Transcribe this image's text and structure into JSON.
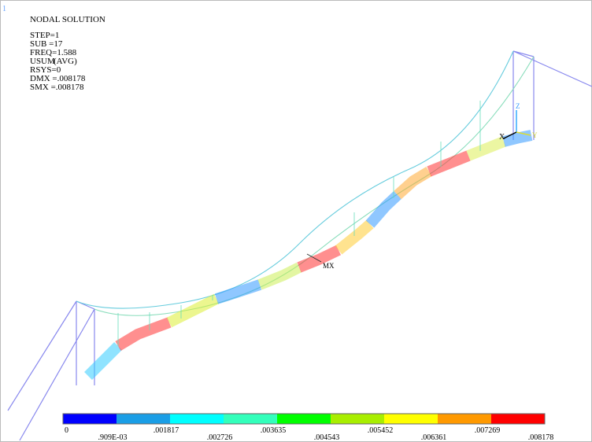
{
  "window_label": "1",
  "header": {
    "lines": [
      "NODAL SOLUTION",
      "STEP=1",
      "SUB =17",
      "FREQ=1.588",
      "USUM",
      "RSYS=0",
      "DMX =.008178",
      "SMX =.008178"
    ],
    "avg": "(AVG)"
  },
  "markers": {
    "max": "MX",
    "axes": [
      "Z",
      "X",
      "Y"
    ]
  },
  "legend": {
    "colors": [
      "#0000ff",
      "#1a9ee6",
      "#00ffff",
      "#33ffbb",
      "#00ff00",
      "#a8ee00",
      "#ffff00",
      "#ff9900",
      "#ff0000"
    ],
    "labels": [
      "0",
      ".909E-03",
      ".001817",
      ".002726",
      ".003635",
      ".004543",
      ".005452",
      ".006361",
      ".007269",
      ".008178"
    ]
  }
}
